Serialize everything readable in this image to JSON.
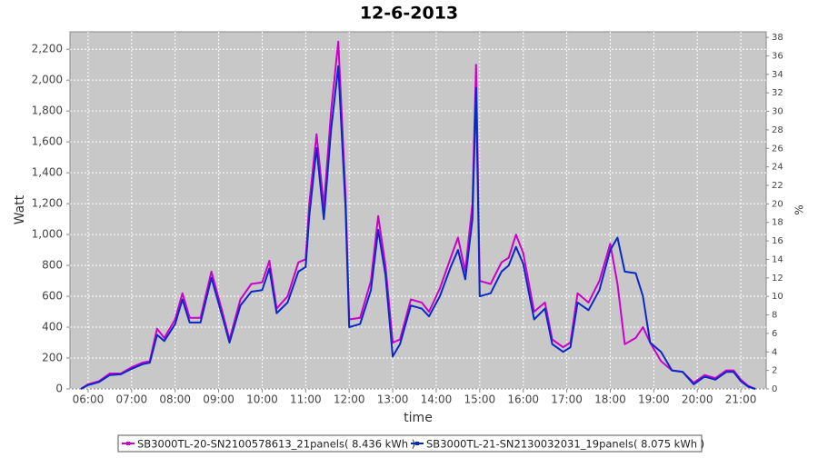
{
  "chart_data": {
    "type": "line",
    "title": "12-6-2013",
    "x_label": "time",
    "y_label": "Watt",
    "y2_label": "%",
    "x": [
      "05:50",
      "06:00",
      "06:15",
      "06:30",
      "06:45",
      "07:00",
      "07:15",
      "07:25",
      "07:35",
      "07:45",
      "08:00",
      "08:10",
      "08:20",
      "08:35",
      "08:50",
      "09:05",
      "09:15",
      "09:30",
      "09:45",
      "10:00",
      "10:10",
      "10:20",
      "10:35",
      "10:50",
      "11:00",
      "11:05",
      "11:15",
      "11:25",
      "11:35",
      "11:45",
      "11:55",
      "12:00",
      "12:15",
      "12:30",
      "12:40",
      "12:50",
      "13:00",
      "13:10",
      "13:25",
      "13:40",
      "13:50",
      "14:05",
      "14:20",
      "14:30",
      "14:40",
      "14:50",
      "14:55",
      "15:00",
      "15:15",
      "15:30",
      "15:40",
      "15:50",
      "16:00",
      "16:15",
      "16:30",
      "16:40",
      "16:55",
      "17:05",
      "17:15",
      "17:30",
      "17:45",
      "18:00",
      "18:10",
      "18:20",
      "18:35",
      "18:45",
      "18:55",
      "19:10",
      "19:25",
      "19:40",
      "19:55",
      "20:10",
      "20:25",
      "20:40",
      "20:50",
      "21:00",
      "21:10",
      "21:20"
    ],
    "series": [
      {
        "name": "SB3000TL-20-SN2100578613_21panels( 8.436 kWh )",
        "color": "#cc00cc",
        "values": [
          0,
          30,
          50,
          100,
          100,
          140,
          170,
          180,
          390,
          330,
          450,
          620,
          460,
          460,
          760,
          500,
          320,
          580,
          680,
          690,
          830,
          520,
          600,
          820,
          840,
          1200,
          1650,
          1180,
          1800,
          2250,
          1250,
          450,
          460,
          700,
          1120,
          800,
          300,
          320,
          580,
          560,
          500,
          650,
          850,
          980,
          760,
          1200,
          2100,
          700,
          680,
          820,
          850,
          1000,
          880,
          500,
          560,
          320,
          270,
          300,
          620,
          560,
          700,
          940,
          680,
          290,
          330,
          400,
          300,
          180,
          120,
          110,
          40,
          90,
          70,
          120,
          120,
          60,
          20,
          0
        ]
      },
      {
        "name": "SB3000TL-21-SN2130032031_19panels( 8.075 kWh )",
        "color": "#0a28c8",
        "values": [
          0,
          25,
          45,
          90,
          95,
          130,
          160,
          170,
          350,
          310,
          420,
          580,
          430,
          430,
          720,
          470,
          300,
          540,
          630,
          640,
          780,
          490,
          560,
          760,
          790,
          1120,
          1560,
          1100,
          1680,
          2090,
          1170,
          400,
          420,
          640,
          1030,
          740,
          210,
          290,
          540,
          520,
          470,
          600,
          790,
          900,
          710,
          1100,
          1950,
          600,
          620,
          760,
          800,
          920,
          810,
          450,
          520,
          290,
          240,
          270,
          560,
          510,
          640,
          900,
          980,
          760,
          750,
          600,
          300,
          240,
          120,
          110,
          30,
          80,
          60,
          110,
          110,
          50,
          15,
          0
        ]
      }
    ],
    "xlim": [
      "05:35",
      "21:35"
    ],
    "xticks": [
      "06:00",
      "07:00",
      "08:00",
      "09:00",
      "10:00",
      "11:00",
      "12:00",
      "13:00",
      "14:00",
      "15:00",
      "16:00",
      "17:00",
      "18:00",
      "19:00",
      "20:00",
      "21:00"
    ],
    "ylim": [
      0,
      2313
    ],
    "yticks": [
      0,
      200,
      400,
      600,
      800,
      {
        "value": 1000,
        "label": "1,000"
      },
      {
        "value": 1200,
        "label": "1,200"
      },
      {
        "value": 1400,
        "label": "1,400"
      },
      {
        "value": 1600,
        "label": "1,600"
      },
      {
        "value": 1800,
        "label": "1,800"
      },
      {
        "value": 2000,
        "label": "2,000"
      },
      {
        "value": 2200,
        "label": "2,200"
      }
    ],
    "y2lim": [
      0,
      38.6
    ],
    "y2ticks": [
      0,
      2,
      4,
      6,
      8,
      10,
      12,
      14,
      16,
      18,
      20,
      22,
      24,
      26,
      28,
      30,
      32,
      34,
      36,
      38
    ],
    "grid": true
  }
}
